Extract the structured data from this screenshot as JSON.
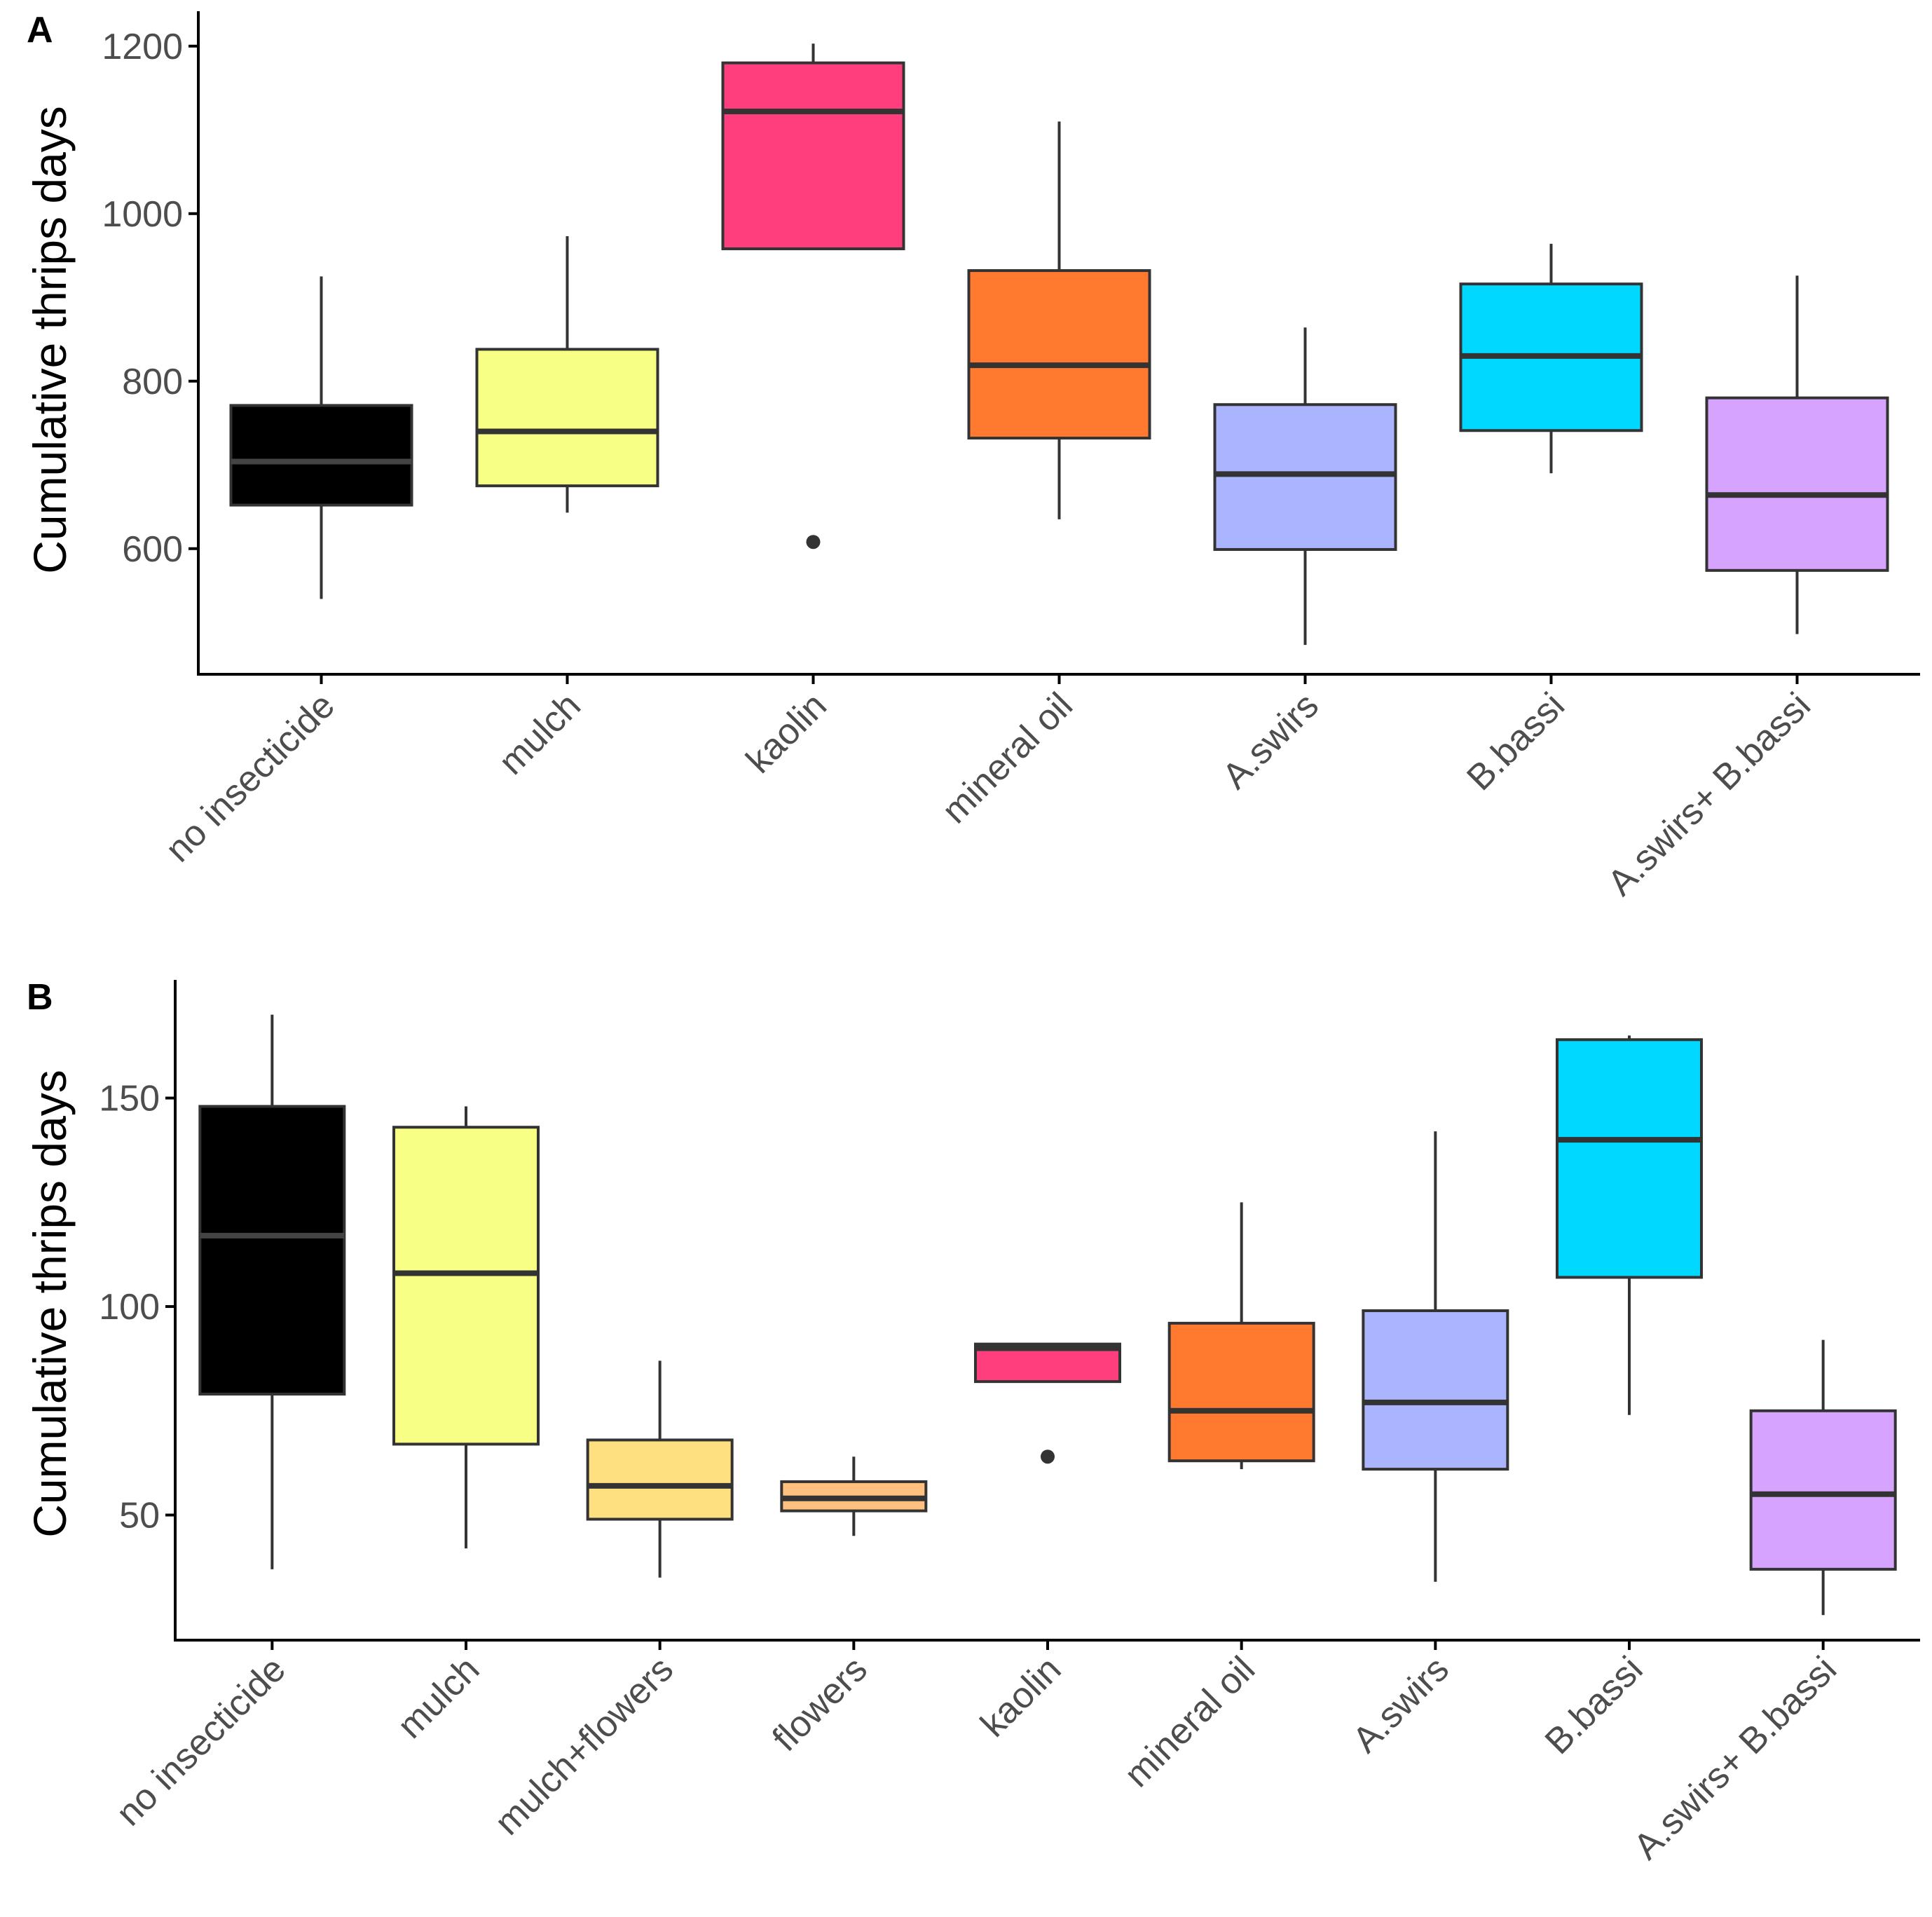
{
  "chart_data": [
    {
      "type": "box",
      "panel": "A",
      "ylabel": "Cumulative thrips days",
      "ylim": [
        450,
        1240
      ],
      "yticks": [
        600,
        800,
        1000,
        1200
      ],
      "categories": [
        "no insecticide",
        "mulch",
        "kaolin",
        "mineral oil",
        "A.swirs",
        "B.bassi",
        "A.swirs+ B.bassi"
      ],
      "colors": [
        "#000000",
        "#F7FF85",
        "#FF3F7D",
        "#FF7A2F",
        "#AAB4FF",
        "#00D8FF",
        "#D6A4FF"
      ],
      "median_colors": [
        "#444444",
        "#333333",
        "#333333",
        "#333333",
        "#333333",
        "#333333",
        "#333333"
      ],
      "boxes": [
        {
          "whisker_low": 540,
          "q1": 652,
          "median": 704,
          "q3": 771,
          "whisker_high": 925,
          "outliers": []
        },
        {
          "whisker_low": 643,
          "q1": 675,
          "median": 740,
          "q3": 838,
          "whisker_high": 973,
          "outliers": []
        },
        {
          "whisker_low": 958,
          "q1": 958,
          "median": 1122,
          "q3": 1180,
          "whisker_high": 1203,
          "outliers": [
            608
          ]
        },
        {
          "whisker_low": 635,
          "q1": 732,
          "median": 819,
          "q3": 932,
          "whisker_high": 1110,
          "outliers": []
        },
        {
          "whisker_low": 485,
          "q1": 599,
          "median": 689,
          "q3": 772,
          "whisker_high": 864,
          "outliers": []
        },
        {
          "whisker_low": 690,
          "q1": 741,
          "median": 830,
          "q3": 916,
          "whisker_high": 964,
          "outliers": []
        },
        {
          "whisker_low": 498,
          "q1": 574,
          "median": 664,
          "q3": 780,
          "whisker_high": 926,
          "outliers": []
        }
      ]
    },
    {
      "type": "box",
      "panel": "B",
      "ylabel": "Cumulative thrips days",
      "ylim": [
        20,
        178
      ],
      "yticks": [
        50,
        100,
        150
      ],
      "categories": [
        "no insecticide",
        "mulch",
        "mulch+flowers",
        "flowers",
        "kaolin",
        "mineral oil",
        "A.swirs",
        "B.bassi",
        "A.swirs+ B.bassi"
      ],
      "colors": [
        "#000000",
        "#F7FF85",
        "#FFE080",
        "#FFC080",
        "#FF3F7D",
        "#FF7A2F",
        "#AAB4FF",
        "#00D8FF",
        "#D6A4FF"
      ],
      "median_colors": [
        "#444444",
        "#333333",
        "#333333",
        "#333333",
        "#333333",
        "#333333",
        "#333333",
        "#333333",
        "#333333"
      ],
      "boxes": [
        {
          "whisker_low": 37,
          "q1": 79,
          "median": 117,
          "q3": 148,
          "whisker_high": 170,
          "outliers": []
        },
        {
          "whisker_low": 42,
          "q1": 67,
          "median": 108,
          "q3": 143,
          "whisker_high": 148,
          "outliers": []
        },
        {
          "whisker_low": 35,
          "q1": 49,
          "median": 57,
          "q3": 68,
          "whisker_high": 87,
          "outliers": []
        },
        {
          "whisker_low": 45,
          "q1": 51,
          "median": 54,
          "q3": 58,
          "whisker_high": 64,
          "outliers": []
        },
        {
          "whisker_low": 82,
          "q1": 82,
          "median": 90,
          "q3": 91,
          "whisker_high": 91,
          "outliers": [
            64
          ]
        },
        {
          "whisker_low": 61,
          "q1": 63,
          "median": 75,
          "q3": 96,
          "whisker_high": 125,
          "outliers": []
        },
        {
          "whisker_low": 34,
          "q1": 61,
          "median": 77,
          "q3": 99,
          "whisker_high": 142,
          "outliers": []
        },
        {
          "whisker_low": 74,
          "q1": 107,
          "median": 140,
          "q3": 164,
          "whisker_high": 165,
          "outliers": []
        },
        {
          "whisker_low": 26,
          "q1": 37,
          "median": 55,
          "q3": 75,
          "whisker_high": 92,
          "outliers": []
        }
      ]
    }
  ]
}
